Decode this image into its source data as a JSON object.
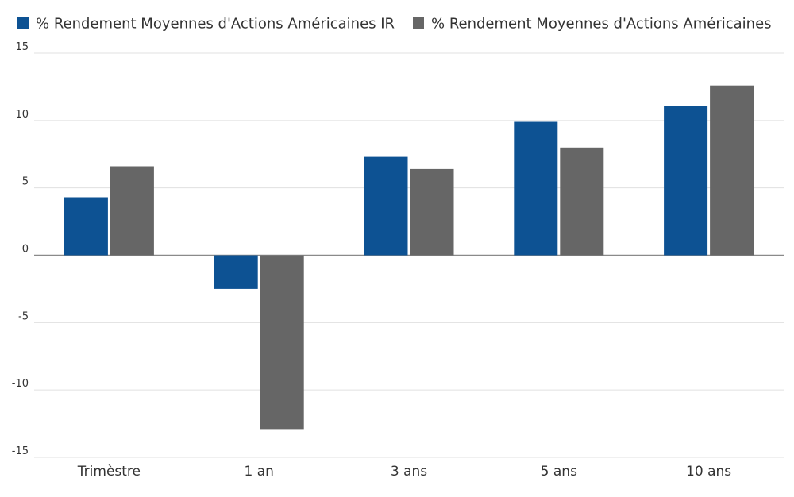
{
  "chart_data": {
    "type": "bar",
    "categories": [
      "Trimèstre",
      "1 an",
      "3 ans",
      "5 ans",
      "10 ans"
    ],
    "series": [
      {
        "name": "% Rendement Moyennes d'Actions Américaines IR",
        "values": [
          4.3,
          -2.5,
          7.3,
          9.9,
          11.1
        ],
        "color": "#0d5293"
      },
      {
        "name": "% Rendement Moyennes d'Actions Américaines",
        "values": [
          6.6,
          -12.9,
          6.4,
          8.0,
          12.6
        ],
        "color": "#666666"
      }
    ],
    "title": "",
    "xlabel": "",
    "ylabel": "",
    "ylim": [
      -15,
      15
    ],
    "yticks": [
      15,
      10,
      5,
      0,
      -5,
      -10,
      -15
    ],
    "grid": true,
    "legend_position": "top"
  }
}
